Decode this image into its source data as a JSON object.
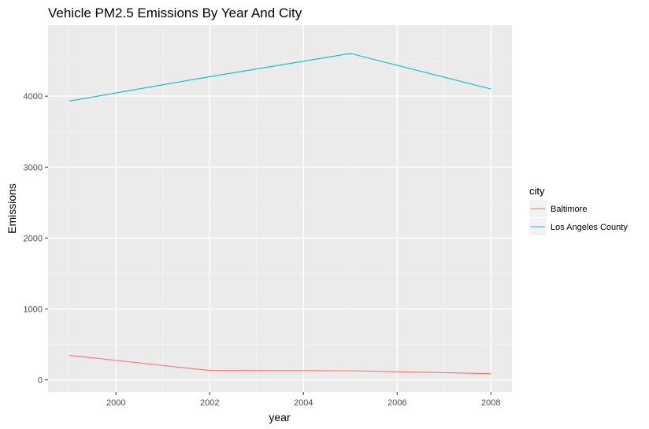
{
  "chart_data": {
    "type": "line",
    "title": "Vehicle PM2.5 Emissions By Year And City",
    "xlabel": "year",
    "ylabel": "Emissions",
    "x": [
      1999,
      2002,
      2005,
      2008
    ],
    "xlim": [
      1998.55,
      2008.45
    ],
    "ylim": [
      -170,
      5000
    ],
    "xticks": [
      2000,
      2002,
      2004,
      2006,
      2008
    ],
    "yticks": [
      0,
      1000,
      2000,
      3000,
      4000
    ],
    "grid": true,
    "legend": {
      "title": "city",
      "position": "right"
    },
    "series": [
      {
        "name": "Baltimore",
        "color": "#F8766D",
        "values": [
          347,
          134,
          130,
          88
        ]
      },
      {
        "name": "Los Angeles County",
        "color": "#00BFC4",
        "values": [
          3931,
          4274,
          4602,
          4101
        ]
      }
    ]
  }
}
